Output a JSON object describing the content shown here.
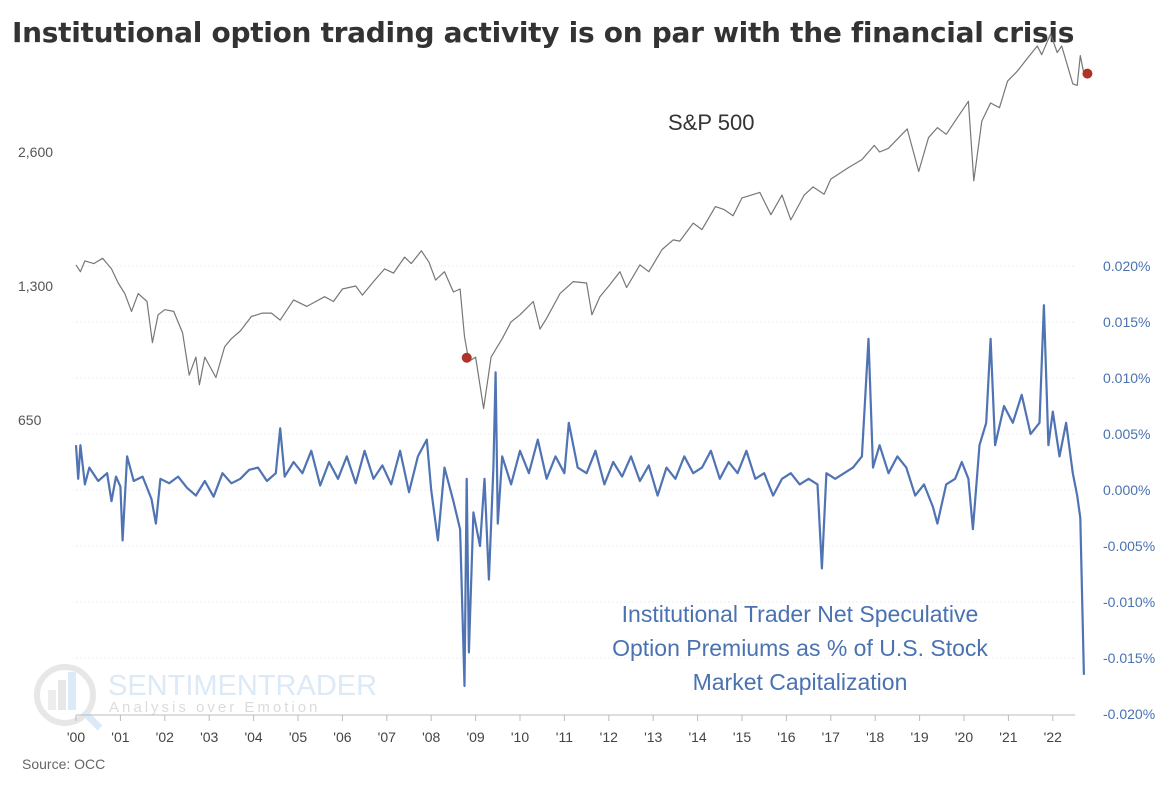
{
  "chart_data": {
    "type": "line",
    "title": "Institutional option trading activity is on par with the financial crisis",
    "source": "Source: OCC",
    "watermark": {
      "brand": "SENTIMENTRADER",
      "tagline": "Analysis over Emotion"
    },
    "x_ticks": [
      "'00",
      "'01",
      "'02",
      "'03",
      "'04",
      "'05",
      "'06",
      "'07",
      "'08",
      "'09",
      "'10",
      "'11",
      "'12",
      "'13",
      "'14",
      "'15",
      "'16",
      "'17",
      "'18",
      "'19",
      "'20",
      "'21",
      "'22"
    ],
    "xlim": [
      2000,
      2022.9
    ],
    "left_axis": {
      "scale": "log",
      "ticks": [
        650,
        1300,
        2600
      ],
      "tick_labels": [
        "650",
        "1,300",
        "2,600"
      ]
    },
    "right_axis": {
      "ticks": [
        0.02,
        0.015,
        0.01,
        0.005,
        0,
        -0.005,
        -0.01,
        -0.015,
        -0.02
      ],
      "tick_labels": [
        "0.020%",
        "0.015%",
        "0.010%",
        "0.005%",
        "0.000%",
        "-0.005%",
        "-0.010%",
        "-0.015%",
        "-0.020%"
      ],
      "ylim": [
        -0.02,
        0.02
      ]
    },
    "series": [
      {
        "name": "S&P 500",
        "axis": "left",
        "color": "#777777",
        "label": "S&P 500",
        "points": [
          [
            2000.0,
            1450
          ],
          [
            2000.1,
            1400
          ],
          [
            2000.2,
            1480
          ],
          [
            2000.4,
            1460
          ],
          [
            2000.6,
            1500
          ],
          [
            2000.8,
            1420
          ],
          [
            2000.95,
            1320
          ],
          [
            2001.1,
            1250
          ],
          [
            2001.25,
            1140
          ],
          [
            2001.4,
            1250
          ],
          [
            2001.6,
            1200
          ],
          [
            2001.72,
            970
          ],
          [
            2001.85,
            1120
          ],
          [
            2002.0,
            1150
          ],
          [
            2002.2,
            1140
          ],
          [
            2002.4,
            1020
          ],
          [
            2002.55,
            820
          ],
          [
            2002.7,
            900
          ],
          [
            2002.78,
            780
          ],
          [
            2002.9,
            900
          ],
          [
            2003.15,
            810
          ],
          [
            2003.35,
            950
          ],
          [
            2003.5,
            990
          ],
          [
            2003.7,
            1030
          ],
          [
            2003.95,
            1110
          ],
          [
            2004.2,
            1130
          ],
          [
            2004.4,
            1130
          ],
          [
            2004.6,
            1090
          ],
          [
            2004.9,
            1210
          ],
          [
            2005.2,
            1170
          ],
          [
            2005.4,
            1200
          ],
          [
            2005.6,
            1230
          ],
          [
            2005.8,
            1200
          ],
          [
            2006.0,
            1280
          ],
          [
            2006.3,
            1300
          ],
          [
            2006.45,
            1240
          ],
          [
            2006.7,
            1330
          ],
          [
            2006.95,
            1420
          ],
          [
            2007.15,
            1390
          ],
          [
            2007.4,
            1510
          ],
          [
            2007.55,
            1460
          ],
          [
            2007.78,
            1560
          ],
          [
            2007.95,
            1470
          ],
          [
            2008.1,
            1340
          ],
          [
            2008.3,
            1400
          ],
          [
            2008.5,
            1260
          ],
          [
            2008.65,
            1280
          ],
          [
            2008.75,
            1000
          ],
          [
            2008.85,
            880
          ],
          [
            2009.0,
            900
          ],
          [
            2009.18,
            690
          ],
          [
            2009.35,
            900
          ],
          [
            2009.6,
            990
          ],
          [
            2009.8,
            1080
          ],
          [
            2010.0,
            1120
          ],
          [
            2010.3,
            1200
          ],
          [
            2010.45,
            1040
          ],
          [
            2010.6,
            1100
          ],
          [
            2010.9,
            1250
          ],
          [
            2011.2,
            1330
          ],
          [
            2011.5,
            1320
          ],
          [
            2011.62,
            1120
          ],
          [
            2011.8,
            1230
          ],
          [
            2012.0,
            1300
          ],
          [
            2012.25,
            1400
          ],
          [
            2012.4,
            1290
          ],
          [
            2012.7,
            1450
          ],
          [
            2012.9,
            1400
          ],
          [
            2013.2,
            1570
          ],
          [
            2013.45,
            1650
          ],
          [
            2013.6,
            1640
          ],
          [
            2013.9,
            1800
          ],
          [
            2014.1,
            1740
          ],
          [
            2014.4,
            1960
          ],
          [
            2014.6,
            1930
          ],
          [
            2014.8,
            1870
          ],
          [
            2015.0,
            2050
          ],
          [
            2015.4,
            2110
          ],
          [
            2015.65,
            1880
          ],
          [
            2015.9,
            2080
          ],
          [
            2016.1,
            1830
          ],
          [
            2016.4,
            2080
          ],
          [
            2016.6,
            2170
          ],
          [
            2016.85,
            2090
          ],
          [
            2017.0,
            2260
          ],
          [
            2017.4,
            2400
          ],
          [
            2017.7,
            2500
          ],
          [
            2017.98,
            2690
          ],
          [
            2018.1,
            2600
          ],
          [
            2018.3,
            2650
          ],
          [
            2018.72,
            2930
          ],
          [
            2018.98,
            2350
          ],
          [
            2019.2,
            2800
          ],
          [
            2019.4,
            2950
          ],
          [
            2019.6,
            2850
          ],
          [
            2019.8,
            3050
          ],
          [
            2020.1,
            3380
          ],
          [
            2020.22,
            2240
          ],
          [
            2020.4,
            3050
          ],
          [
            2020.6,
            3350
          ],
          [
            2020.8,
            3270
          ],
          [
            2020.98,
            3750
          ],
          [
            2021.2,
            3950
          ],
          [
            2021.45,
            4250
          ],
          [
            2021.65,
            4500
          ],
          [
            2021.75,
            4300
          ],
          [
            2021.95,
            4790
          ],
          [
            2022.1,
            4350
          ],
          [
            2022.2,
            4500
          ],
          [
            2022.45,
            3700
          ],
          [
            2022.55,
            3670
          ],
          [
            2022.62,
            4280
          ],
          [
            2022.7,
            3900
          ]
        ],
        "markers": [
          [
            2008.8,
            897
          ],
          [
            2022.78,
            3900
          ]
        ]
      },
      {
        "name": "Institutional Trader Net Speculative Option Premiums as % of U.S. Stock Market Capitalization",
        "axis": "right",
        "color": "#4f73b3",
        "label_lines": [
          "Institutional Trader Net Speculative",
          "Option Premiums as % of U.S. Stock",
          "Market Capitalization"
        ],
        "points": [
          [
            2000.0,
            0.004
          ],
          [
            2000.05,
            0.001
          ],
          [
            2000.1,
            0.004
          ],
          [
            2000.2,
            0.0005
          ],
          [
            2000.3,
            0.002
          ],
          [
            2000.5,
            0.0008
          ],
          [
            2000.7,
            0.0015
          ],
          [
            2000.8,
            -0.001
          ],
          [
            2000.9,
            0.0012
          ],
          [
            2001.0,
            0.0003
          ],
          [
            2001.05,
            -0.0045
          ],
          [
            2001.15,
            0.003
          ],
          [
            2001.3,
            0.0008
          ],
          [
            2001.5,
            0.0012
          ],
          [
            2001.7,
            -0.0008
          ],
          [
            2001.8,
            -0.003
          ],
          [
            2001.9,
            0.001
          ],
          [
            2002.1,
            0.0006
          ],
          [
            2002.3,
            0.0012
          ],
          [
            2002.5,
            0.0002
          ],
          [
            2002.7,
            -0.0005
          ],
          [
            2002.9,
            0.0008
          ],
          [
            2003.1,
            -0.0006
          ],
          [
            2003.3,
            0.0015
          ],
          [
            2003.5,
            0.0006
          ],
          [
            2003.7,
            0.001
          ],
          [
            2003.9,
            0.0018
          ],
          [
            2004.1,
            0.002
          ],
          [
            2004.3,
            0.0008
          ],
          [
            2004.5,
            0.0015
          ],
          [
            2004.6,
            0.0055
          ],
          [
            2004.7,
            0.0012
          ],
          [
            2004.9,
            0.0025
          ],
          [
            2005.1,
            0.0015
          ],
          [
            2005.3,
            0.0035
          ],
          [
            2005.5,
            0.0004
          ],
          [
            2005.7,
            0.0025
          ],
          [
            2005.9,
            0.001
          ],
          [
            2006.1,
            0.003
          ],
          [
            2006.3,
            0.0006
          ],
          [
            2006.5,
            0.0035
          ],
          [
            2006.7,
            0.001
          ],
          [
            2006.9,
            0.0022
          ],
          [
            2007.1,
            0.0005
          ],
          [
            2007.3,
            0.0035
          ],
          [
            2007.5,
            -0.0002
          ],
          [
            2007.7,
            0.003
          ],
          [
            2007.9,
            0.0045
          ],
          [
            2008.0,
            0.0
          ],
          [
            2008.15,
            -0.0045
          ],
          [
            2008.3,
            0.002
          ],
          [
            2008.5,
            -0.001
          ],
          [
            2008.65,
            -0.0035
          ],
          [
            2008.75,
            -0.0175
          ],
          [
            2008.8,
            0.001
          ],
          [
            2008.85,
            -0.0145
          ],
          [
            2008.95,
            -0.002
          ],
          [
            2009.1,
            -0.005
          ],
          [
            2009.2,
            0.001
          ],
          [
            2009.3,
            -0.008
          ],
          [
            2009.4,
            0.002
          ],
          [
            2009.45,
            0.0105
          ],
          [
            2009.5,
            -0.003
          ],
          [
            2009.6,
            0.003
          ],
          [
            2009.8,
            0.0005
          ],
          [
            2010.0,
            0.0035
          ],
          [
            2010.2,
            0.0015
          ],
          [
            2010.4,
            0.0045
          ],
          [
            2010.6,
            0.001
          ],
          [
            2010.8,
            0.003
          ],
          [
            2011.0,
            0.0015
          ],
          [
            2011.1,
            0.006
          ],
          [
            2011.3,
            0.002
          ],
          [
            2011.5,
            0.0015
          ],
          [
            2011.7,
            0.0035
          ],
          [
            2011.9,
            0.0005
          ],
          [
            2012.1,
            0.0025
          ],
          [
            2012.3,
            0.0012
          ],
          [
            2012.5,
            0.003
          ],
          [
            2012.7,
            0.0008
          ],
          [
            2012.9,
            0.0022
          ],
          [
            2013.1,
            -0.0005
          ],
          [
            2013.3,
            0.002
          ],
          [
            2013.5,
            0.001
          ],
          [
            2013.7,
            0.003
          ],
          [
            2013.9,
            0.0015
          ],
          [
            2014.1,
            0.002
          ],
          [
            2014.3,
            0.0035
          ],
          [
            2014.5,
            0.001
          ],
          [
            2014.7,
            0.0025
          ],
          [
            2014.9,
            0.0015
          ],
          [
            2015.1,
            0.0035
          ],
          [
            2015.3,
            0.001
          ],
          [
            2015.5,
            0.0015
          ],
          [
            2015.7,
            -0.0005
          ],
          [
            2015.9,
            0.001
          ],
          [
            2016.1,
            0.0015
          ],
          [
            2016.3,
            0.0005
          ],
          [
            2016.5,
            0.001
          ],
          [
            2016.7,
            0.0005
          ],
          [
            2016.8,
            -0.007
          ],
          [
            2016.9,
            0.0015
          ],
          [
            2017.1,
            0.001
          ],
          [
            2017.3,
            0.0015
          ],
          [
            2017.5,
            0.002
          ],
          [
            2017.7,
            0.003
          ],
          [
            2017.85,
            0.0135
          ],
          [
            2017.95,
            0.002
          ],
          [
            2018.1,
            0.004
          ],
          [
            2018.3,
            0.0015
          ],
          [
            2018.5,
            0.003
          ],
          [
            2018.7,
            0.002
          ],
          [
            2018.9,
            -0.0005
          ],
          [
            2019.1,
            0.0005
          ],
          [
            2019.3,
            -0.0015
          ],
          [
            2019.4,
            -0.003
          ],
          [
            2019.6,
            0.0005
          ],
          [
            2019.8,
            0.001
          ],
          [
            2019.95,
            0.0025
          ],
          [
            2020.1,
            0.001
          ],
          [
            2020.2,
            -0.0035
          ],
          [
            2020.35,
            0.004
          ],
          [
            2020.5,
            0.006
          ],
          [
            2020.6,
            0.0135
          ],
          [
            2020.7,
            0.004
          ],
          [
            2020.9,
            0.0075
          ],
          [
            2021.1,
            0.006
          ],
          [
            2021.3,
            0.0085
          ],
          [
            2021.5,
            0.005
          ],
          [
            2021.7,
            0.006
          ],
          [
            2021.8,
            0.0165
          ],
          [
            2021.9,
            0.004
          ],
          [
            2022.0,
            0.007
          ],
          [
            2022.15,
            0.003
          ],
          [
            2022.3,
            0.006
          ],
          [
            2022.45,
            0.0015
          ],
          [
            2022.55,
            -0.0005
          ],
          [
            2022.62,
            -0.0025
          ],
          [
            2022.7,
            -0.0165
          ]
        ]
      }
    ],
    "marker_color": "#b0332a",
    "grid": true
  }
}
